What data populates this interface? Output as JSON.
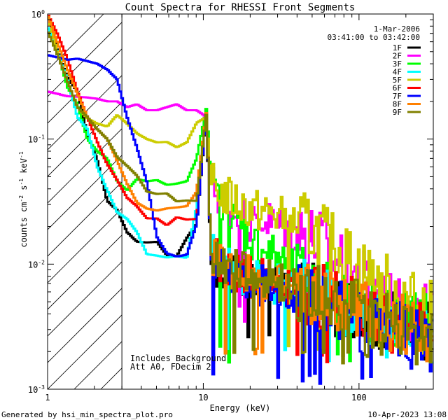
{
  "chart_data": {
    "type": "line",
    "title": "Count Spectra for RHESSI Front Segments",
    "xlabel": "Energy (keV)",
    "ylabel_main": "counts cm",
    "ylabel_exp1": "-2",
    "ylabel_mid": " s",
    "ylabel_exp2": "-1",
    "ylabel_end": " keV",
    "ylabel_exp3": "-1",
    "xscale": "log",
    "yscale": "log",
    "xlim": [
      1,
      300
    ],
    "ylim": [
      0.001,
      1
    ],
    "x_ticks": [
      {
        "value": 1,
        "label": "1"
      },
      {
        "value": 10,
        "label": "10"
      },
      {
        "value": 100,
        "label": "100"
      }
    ],
    "y_ticks": [
      {
        "value": 0.001,
        "mantissa": "10",
        "exp": "-3"
      },
      {
        "value": 0.01,
        "mantissa": "10",
        "exp": "-2"
      },
      {
        "value": 0.1,
        "mantissa": "10",
        "exp": "-1"
      },
      {
        "value": 1,
        "mantissa": "10",
        "exp": "0"
      }
    ],
    "hatched_region": {
      "xmin": 1,
      "xmax": 3
    },
    "date": "1-Mar-2006",
    "time_range": "03:41:00 to 03:42:00",
    "annotations": [
      "Includes Background",
      "Att A0, FDecim 2"
    ],
    "legend_location": "top-right",
    "series": [
      {
        "name": "1F",
        "color": "#000000",
        "ymin": 0.00193,
        "values": [
          1.0,
          0.51,
          0.31,
          0.24,
          0.11,
          0.068,
          0.032,
          0.027,
          0.018,
          0.0151,
          0.0149,
          0.0151,
          0.0118,
          0.0116,
          0.0162,
          0.021,
          0.165,
          0.0101,
          0.0084,
          0.0079,
          0.0075,
          0.0071,
          0.0068,
          0.0063,
          0.0057,
          0.0052,
          0.0049,
          0.0044,
          0.004,
          0.0037,
          0.0034,
          0.0031,
          0.0028,
          0.0026
        ]
      },
      {
        "name": "2F",
        "color": "#ff00ff",
        "ymin": 0.0034,
        "values": [
          0.24,
          0.23,
          0.22,
          0.218,
          0.215,
          0.21,
          0.2,
          0.2,
          0.18,
          0.19,
          0.17,
          0.17,
          0.18,
          0.19,
          0.17,
          0.17,
          0.15,
          0.045,
          0.029,
          0.026,
          0.021,
          0.023,
          0.02,
          0.018,
          0.017,
          0.0147,
          0.0109,
          0.009,
          0.0072,
          0.0055,
          0.0045,
          0.0041,
          0.0038,
          0.0037
        ]
      },
      {
        "name": "3F",
        "color": "#00ff00",
        "ymin": 0.0016,
        "values": [
          0.79,
          0.5,
          0.26,
          0.19,
          0.1,
          0.08,
          0.07,
          0.046,
          0.039,
          0.048,
          0.046,
          0.047,
          0.043,
          0.044,
          0.046,
          0.07,
          0.18,
          0.045,
          0.025,
          0.021,
          0.015,
          0.0129,
          0.0109,
          0.0085,
          0.0071,
          0.0062,
          0.0053,
          0.0044,
          0.004,
          0.0037,
          0.0035,
          0.0035,
          0.0034,
          0.0033
        ]
      },
      {
        "name": "4F",
        "color": "#00ffff",
        "ymin": 0.0016,
        "values": [
          0.8,
          0.5,
          0.3,
          0.15,
          0.12,
          0.06,
          0.039,
          0.026,
          0.023,
          0.018,
          0.012,
          0.0117,
          0.0113,
          0.0116,
          0.0112,
          0.029,
          0.17,
          0.0122,
          0.0096,
          0.0085,
          0.0075,
          0.007,
          0.0067,
          0.0061,
          0.0056,
          0.0051,
          0.0047,
          0.0043,
          0.0038,
          0.0034,
          0.0032,
          0.0029,
          0.0027,
          0.0025
        ]
      },
      {
        "name": "5F",
        "color": "#cccc00",
        "ymin": 0.0016,
        "values": [
          0.98,
          0.49,
          0.29,
          0.18,
          0.146,
          0.133,
          0.126,
          0.156,
          0.133,
          0.111,
          0.1,
          0.094,
          0.095,
          0.086,
          0.094,
          0.135,
          0.15,
          0.044,
          0.035,
          0.031,
          0.027,
          0.026,
          0.024,
          0.022,
          0.0195,
          0.0165,
          0.0135,
          0.0108,
          0.0088,
          0.0073,
          0.0062,
          0.0052,
          0.0045,
          0.0038
        ]
      },
      {
        "name": "6F",
        "color": "#ff0000",
        "ymin": 0.0016,
        "values": [
          1.0,
          0.69,
          0.44,
          0.24,
          0.15,
          0.095,
          0.063,
          0.047,
          0.034,
          0.029,
          0.0232,
          0.0232,
          0.0204,
          0.0237,
          0.0227,
          0.023,
          0.165,
          0.0118,
          0.0094,
          0.0084,
          0.0076,
          0.0072,
          0.0066,
          0.0062,
          0.0056,
          0.0053,
          0.0049,
          0.0044,
          0.004,
          0.0036,
          0.0032,
          0.0029,
          0.0027,
          0.0025
        ]
      },
      {
        "name": "7F",
        "color": "#0000ff",
        "ymin": 0.0011,
        "values": [
          0.47,
          0.45,
          0.43,
          0.44,
          0.42,
          0.4,
          0.36,
          0.3,
          0.15,
          0.085,
          0.045,
          0.0165,
          0.0122,
          0.0115,
          0.0119,
          0.021,
          0.17,
          0.011,
          0.0087,
          0.0076,
          0.0069,
          0.0065,
          0.006,
          0.0055,
          0.005,
          0.0046,
          0.0041,
          0.0037,
          0.0033,
          0.003,
          0.0028,
          0.0026,
          0.0024,
          0.0022
        ]
      },
      {
        "name": "8F",
        "color": "#ff8000",
        "ymin": 0.0016,
        "values": [
          0.99,
          0.59,
          0.36,
          0.23,
          0.15,
          0.12,
          0.1,
          0.067,
          0.044,
          0.031,
          0.0278,
          0.0268,
          0.0279,
          0.0284,
          0.0291,
          0.038,
          0.17,
          0.012,
          0.0095,
          0.0085,
          0.0077,
          0.0072,
          0.0068,
          0.0063,
          0.0057,
          0.0053,
          0.0049,
          0.0045,
          0.004,
          0.0036,
          0.0033,
          0.003,
          0.0027,
          0.0026
        ]
      },
      {
        "name": "9F",
        "color": "#808000",
        "ymin": 0.0016,
        "values": [
          0.74,
          0.47,
          0.29,
          0.18,
          0.15,
          0.12,
          0.1,
          0.072,
          0.061,
          0.051,
          0.038,
          0.0364,
          0.0368,
          0.0317,
          0.0323,
          0.032,
          0.165,
          0.0122,
          0.0097,
          0.0086,
          0.0078,
          0.0073,
          0.0068,
          0.0062,
          0.0057,
          0.0053,
          0.0048,
          0.0044,
          0.0039,
          0.0036,
          0.0033,
          0.003,
          0.0027,
          0.0025
        ]
      }
    ]
  },
  "footer": {
    "generated_by": "Generated by hsi_min_spectra_plot.pro",
    "timestamp": "10-Apr-2023 13:08"
  },
  "colors": {
    "axis": "#000000",
    "background": "#ffffff",
    "hatch": "#000000"
  }
}
